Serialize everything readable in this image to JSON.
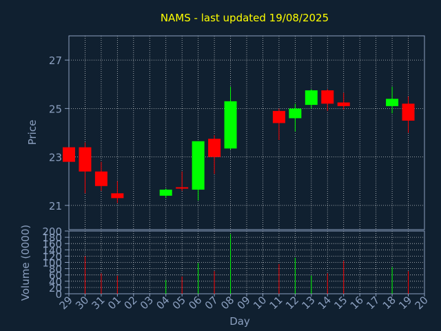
{
  "colors": {
    "background": "#102030",
    "axis": "#8ca0c0",
    "grid": "#ffffff",
    "title": "#ffff00",
    "up": "#00ff00",
    "down": "#ff0000"
  },
  "chart_data": {
    "type": "candlestick",
    "title": "NAMS - last updated 19/08/2025",
    "xlabel": "Day",
    "price_ylabel": "Price",
    "volume_ylabel": "Volume (0000)",
    "price_ylim": [
      20,
      28
    ],
    "price_yticks": [
      "21",
      "23",
      "25",
      "27"
    ],
    "volume_ylim": [
      0,
      200
    ],
    "volume_yticks": [
      "0",
      "20",
      "40",
      "60",
      "80",
      "100",
      "120",
      "140",
      "160",
      "180",
      "200"
    ],
    "grid": true,
    "x_labels": [
      "29",
      "30",
      "31",
      "01",
      "02",
      "03",
      "04",
      "05",
      "06",
      "07",
      "08",
      "09",
      "10",
      "11",
      "12",
      "13",
      "14",
      "15",
      "16",
      "17",
      "18",
      "19",
      "20"
    ],
    "candles": [
      {
        "x": "29",
        "open": 23.4,
        "high": 23.4,
        "low": 22.8,
        "close": 22.8,
        "volume": 0
      },
      {
        "x": "30",
        "open": 23.4,
        "high": 23.6,
        "low": 21.5,
        "close": 22.4,
        "volume": 120
      },
      {
        "x": "31",
        "open": 22.4,
        "high": 22.8,
        "low": 21.6,
        "close": 21.8,
        "volume": 65
      },
      {
        "x": "01",
        "open": 21.5,
        "high": 22.0,
        "low": 21.1,
        "close": 21.3,
        "volume": 58
      },
      {
        "x": "04",
        "open": 21.4,
        "high": 21.7,
        "low": 21.3,
        "close": 21.65,
        "volume": 44
      },
      {
        "x": "05",
        "open": 21.75,
        "high": 22.4,
        "low": 21.6,
        "close": 21.7,
        "volume": 55
      },
      {
        "x": "06",
        "open": 21.65,
        "high": 23.65,
        "low": 21.2,
        "close": 23.65,
        "volume": 98
      },
      {
        "x": "07",
        "open": 23.75,
        "high": 23.9,
        "low": 22.3,
        "close": 23.0,
        "volume": 72
      },
      {
        "x": "08",
        "open": 23.35,
        "high": 25.9,
        "low": 23.3,
        "close": 25.3,
        "volume": 190
      },
      {
        "x": "11",
        "open": 24.9,
        "high": 25.0,
        "low": 23.7,
        "close": 24.4,
        "volume": 95
      },
      {
        "x": "12",
        "open": 24.6,
        "high": 25.2,
        "low": 24.05,
        "close": 25.0,
        "volume": 115
      },
      {
        "x": "13",
        "open": 25.15,
        "high": 25.8,
        "low": 25.0,
        "close": 25.75,
        "volume": 58
      },
      {
        "x": "14",
        "open": 25.75,
        "high": 25.8,
        "low": 24.9,
        "close": 25.2,
        "volume": 65
      },
      {
        "x": "15",
        "open": 25.25,
        "high": 25.65,
        "low": 24.95,
        "close": 25.1,
        "volume": 105
      },
      {
        "x": "18",
        "open": 25.1,
        "high": 25.9,
        "low": 24.8,
        "close": 25.4,
        "volume": 85
      },
      {
        "x": "19",
        "open": 25.2,
        "high": 25.5,
        "low": 24.0,
        "close": 24.5,
        "volume": 72
      }
    ]
  }
}
